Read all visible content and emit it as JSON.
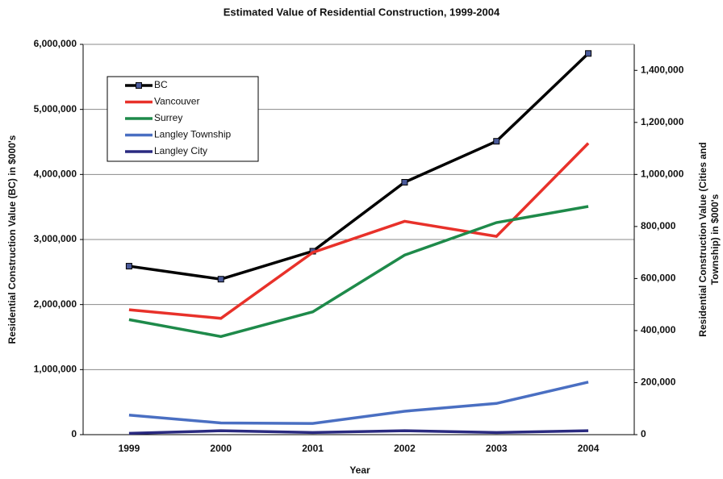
{
  "chart_data": {
    "type": "line",
    "title": "Estimated Value of Residential Construction, 1999-2004",
    "xlabel": "Year",
    "ylabel": "Residential Construction Value (BC) in $000's",
    "y2label": [
      "Residential Construction Value (Cities and",
      "Township) in $000's"
    ],
    "categories": [
      "1999",
      "2000",
      "2001",
      "2002",
      "2003",
      "2004"
    ],
    "ylim": [
      0,
      6000000
    ],
    "yticks": [
      0,
      {
        "value": 1000000,
        "label": "1,000,000"
      },
      {
        "value": 2000000,
        "label": "2,000,000"
      },
      {
        "value": 3000000,
        "label": "3,000,000"
      },
      {
        "value": 4000000,
        "label": "4,000,000"
      },
      {
        "value": 5000000,
        "label": "5,000,000"
      },
      {
        "value": 6000000,
        "label": "6,000,000"
      }
    ],
    "y2lim": [
      0,
      1500000
    ],
    "y2ticks": [
      0,
      {
        "value": 200000,
        "label": "200,000"
      },
      {
        "value": 400000,
        "label": "400,000"
      },
      {
        "value": 600000,
        "label": "600,000"
      },
      {
        "value": 800000,
        "label": "800,000"
      },
      {
        "value": 1000000,
        "label": "1,000,000"
      },
      {
        "value": 1200000,
        "label": "1,200,000"
      },
      {
        "value": 1400000,
        "label": "1,400,000"
      }
    ],
    "grid": true,
    "legend": "upper left",
    "series": [
      {
        "name": "BC",
        "color": "#000000",
        "marker": "square",
        "values": [
          2590000,
          2390000,
          2820000,
          3880000,
          4510000,
          5860000
        ]
      },
      {
        "name": "Vancouver",
        "color": "#e8312a",
        "axis": "y2",
        "values": [
          480000,
          447000,
          700000,
          820000,
          762000,
          1120000
        ]
      },
      {
        "name": "Surrey",
        "color": "#1e8a4a",
        "axis": "y2",
        "values": [
          442000,
          377000,
          472000,
          690000,
          815000,
          877000
        ]
      },
      {
        "name": "Langley Township",
        "color": "#4a6fc2",
        "axis": "y2",
        "values": [
          75000,
          45000,
          43000,
          90000,
          120000,
          202000
        ]
      },
      {
        "name": "Langley City",
        "color": "#2a2a80",
        "axis": "y2",
        "values": [
          5000,
          15000,
          8000,
          15000,
          8000,
          15000
        ]
      }
    ]
  }
}
